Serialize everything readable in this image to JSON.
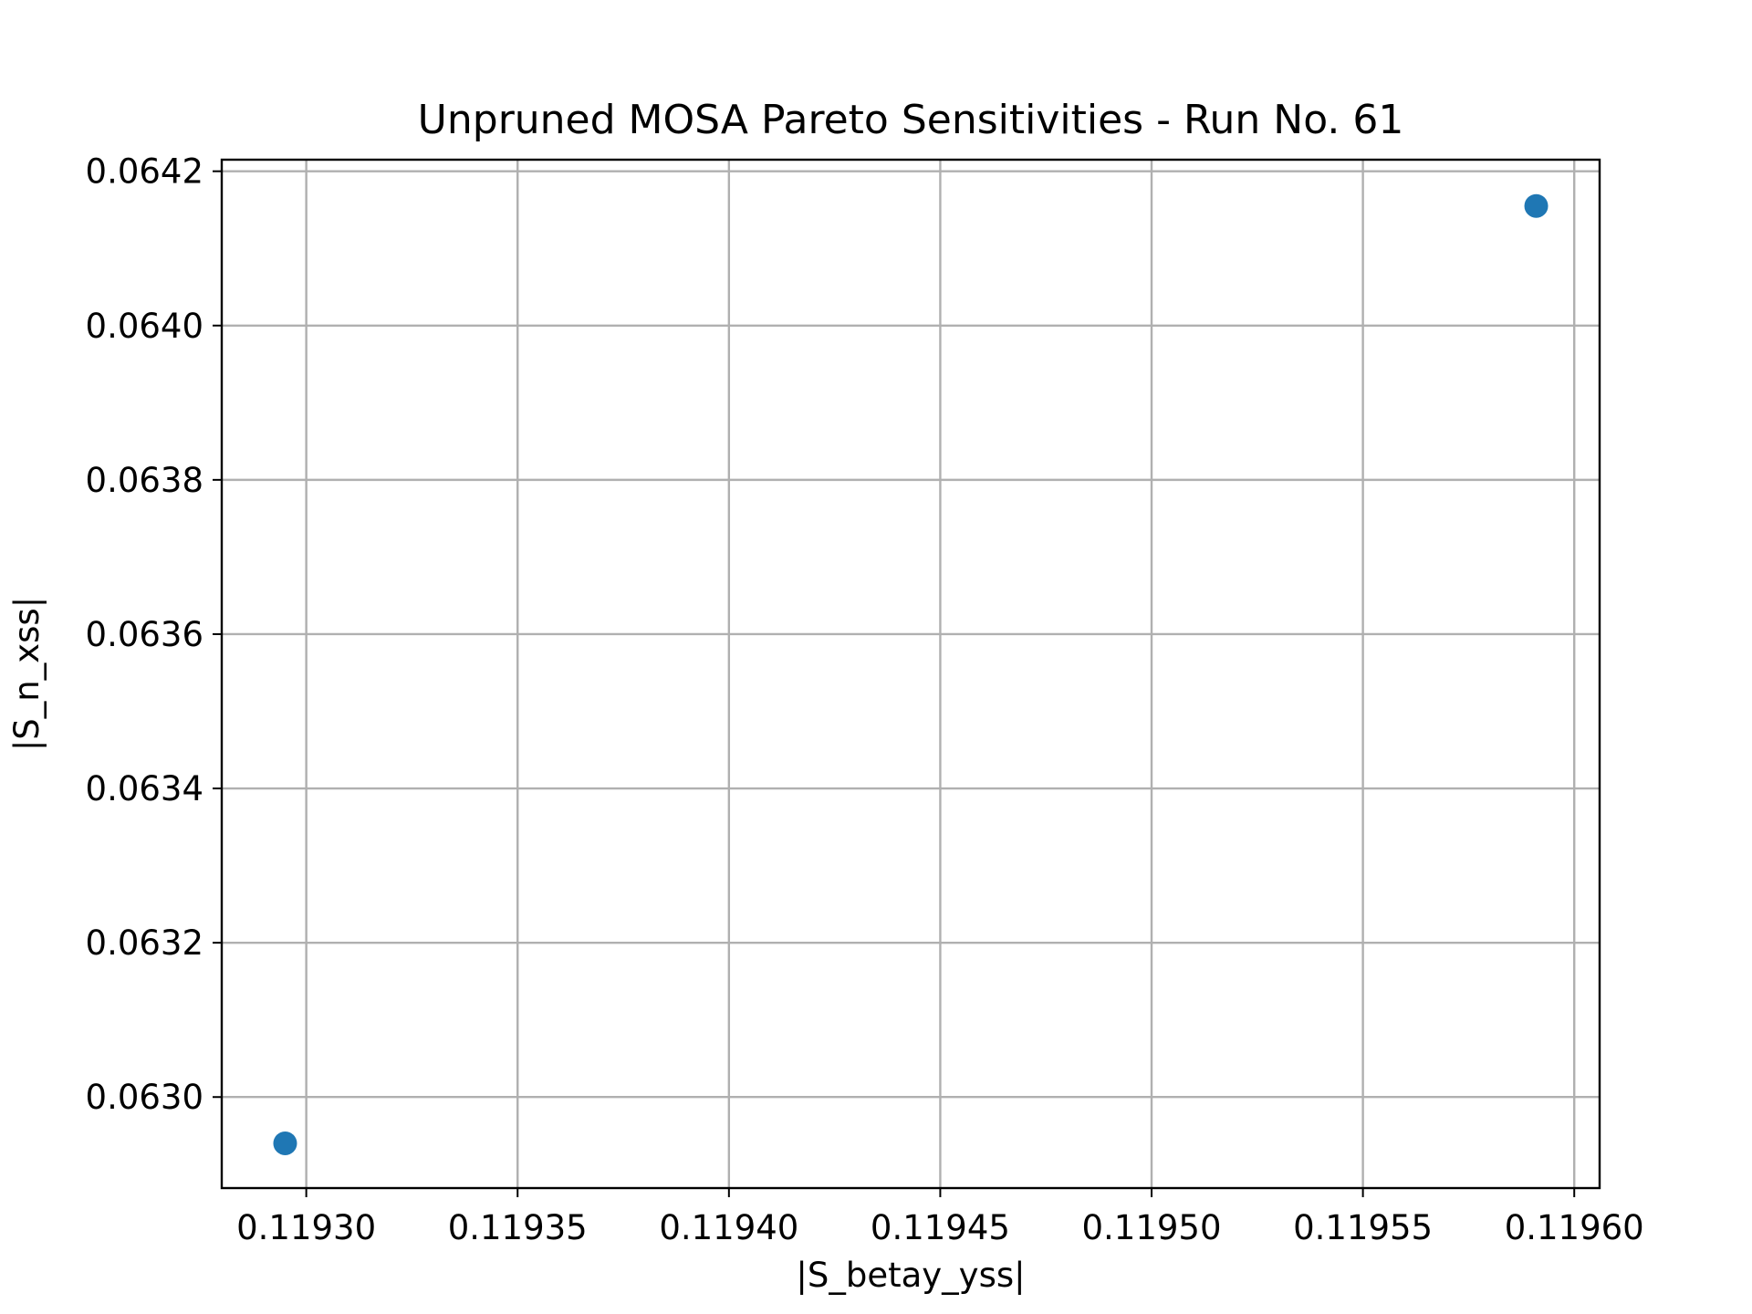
{
  "chart_data": {
    "type": "scatter",
    "title": "Unpruned MOSA Pareto Sensitivities - Run No. 61",
    "xlabel": "|S_betay_yss|",
    "ylabel": "|S_n_xss|",
    "xlim": [
      0.11928,
      0.119606
    ],
    "ylim": [
      0.062882,
      0.064215
    ],
    "xticks": [
      0.1193,
      0.11935,
      0.1194,
      0.11945,
      0.1195,
      0.11955,
      0.1196
    ],
    "xtick_labels": [
      "0.11930",
      "0.11935",
      "0.11940",
      "0.11945",
      "0.11950",
      "0.11955",
      "0.11960"
    ],
    "yticks": [
      0.063,
      0.0632,
      0.0634,
      0.0636,
      0.0638,
      0.064,
      0.0642
    ],
    "ytick_labels": [
      "0.0630",
      "0.0632",
      "0.0634",
      "0.0636",
      "0.0638",
      "0.0640",
      "0.0642"
    ],
    "grid": true,
    "marker_color": "#1f77b4",
    "points": [
      {
        "x": 0.119295,
        "y": 0.06294
      },
      {
        "x": 0.119591,
        "y": 0.064155
      }
    ]
  }
}
